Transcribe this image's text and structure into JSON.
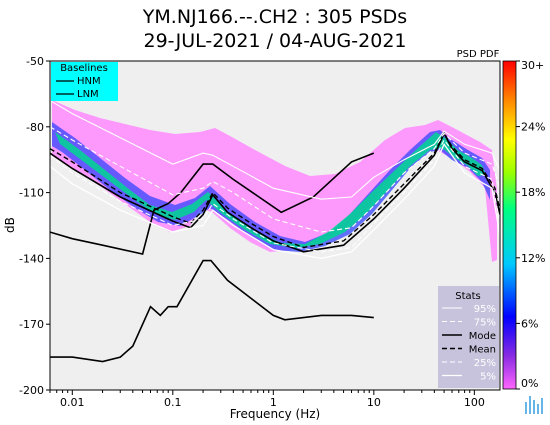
{
  "chart_data": {
    "type": "line",
    "title": "YM.NJ166.--.CH2 : 305 PSDs",
    "subtitle": "29-JUL-2021 / 04-AUG-2021",
    "xlabel": "Frequency (Hz)",
    "ylabel": "dB",
    "xscale": "log",
    "xlim": [
      0.006,
      180
    ],
    "ylim": [
      -200,
      -50
    ],
    "x_ticks": [
      {
        "value": 0.01,
        "label": "0.01"
      },
      {
        "value": 0.1,
        "label": "0.1"
      },
      {
        "value": 1,
        "label": "1"
      },
      {
        "value": 10,
        "label": "10"
      },
      {
        "value": 100,
        "label": "100"
      }
    ],
    "y_ticks": [
      -50,
      -80,
      -110,
      -140,
      -170,
      -200
    ],
    "series": [
      {
        "name": "HNM",
        "x": [
          0.006,
          0.01,
          0.02,
          0.05,
          0.065,
          0.09,
          0.12,
          0.2,
          0.25,
          0.4,
          1.2,
          2.5,
          6,
          10
        ],
        "y": [
          -128,
          -131,
          -134,
          -138,
          -118,
          -115,
          -110,
          -97,
          -97,
          -104,
          -119,
          -112,
          -96,
          -92
        ]
      },
      {
        "name": "LNM",
        "x": [
          0.006,
          0.01,
          0.02,
          0.03,
          0.04,
          0.06,
          0.075,
          0.09,
          0.11,
          0.2,
          0.24,
          0.35,
          1,
          1.3,
          3,
          6,
          10
        ],
        "y": [
          -185,
          -185,
          -187,
          -185,
          -180,
          -162,
          -166,
          -162,
          -162,
          -141,
          -141,
          -150,
          -166,
          -168,
          -166,
          -166,
          -167
        ]
      },
      {
        "name": "Mode",
        "x": [
          0.006,
          0.01,
          0.03,
          0.1,
          0.15,
          0.2,
          0.25,
          0.35,
          0.6,
          1,
          2,
          5,
          10,
          20,
          40,
          50,
          60,
          80,
          120,
          160,
          180
        ],
        "y": [
          -92,
          -99,
          -112,
          -123,
          -126,
          -120,
          -111,
          -119,
          -126,
          -132,
          -137,
          -134,
          -122,
          -108,
          -93,
          -83,
          -90,
          -96,
          -100,
          -110,
          -120
        ]
      },
      {
        "name": "Mean",
        "x": [
          0.006,
          0.01,
          0.03,
          0.1,
          0.15,
          0.2,
          0.25,
          0.35,
          0.6,
          1,
          2,
          5,
          10,
          20,
          40,
          50,
          60,
          80,
          120,
          160,
          180
        ],
        "y": [
          -90,
          -96,
          -110,
          -121,
          -124,
          -118,
          -110,
          -117,
          -124,
          -130,
          -135,
          -132,
          -120,
          -106,
          -92,
          -83,
          -89,
          -95,
          -99,
          -108,
          -118
        ]
      },
      {
        "name": "95%",
        "x": [
          0.006,
          0.01,
          0.03,
          0.1,
          0.2,
          0.25,
          0.4,
          1,
          3,
          6,
          10,
          20,
          40,
          50,
          80,
          150,
          180
        ],
        "y": [
          -68,
          -74,
          -85,
          -97,
          -92,
          -93,
          -98,
          -108,
          -113,
          -112,
          -103,
          -95,
          -88,
          -82,
          -88,
          -92,
          -100
        ]
      },
      {
        "name": "75%",
        "x": [
          0.006,
          0.01,
          0.03,
          0.1,
          0.2,
          0.25,
          0.4,
          1,
          3,
          6,
          10,
          20,
          40,
          50,
          80,
          150,
          180
        ],
        "y": [
          -80,
          -86,
          -98,
          -111,
          -108,
          -105,
          -110,
          -122,
          -128,
          -126,
          -116,
          -101,
          -90,
          -83,
          -92,
          -97,
          -108
        ]
      },
      {
        "name": "25%",
        "x": [
          0.006,
          0.01,
          0.03,
          0.1,
          0.2,
          0.25,
          0.4,
          1,
          3,
          6,
          10,
          20,
          40,
          50,
          80,
          150,
          180
        ],
        "y": [
          -93,
          -101,
          -114,
          -125,
          -122,
          -115,
          -122,
          -133,
          -137,
          -135,
          -124,
          -110,
          -95,
          -86,
          -98,
          -104,
          -125
        ]
      },
      {
        "name": "5%",
        "x": [
          0.006,
          0.01,
          0.03,
          0.1,
          0.2,
          0.25,
          0.4,
          1,
          3,
          6,
          10,
          20,
          40,
          50,
          80,
          150,
          180
        ],
        "y": [
          -98,
          -106,
          -118,
          -128,
          -125,
          -118,
          -125,
          -136,
          -140,
          -137,
          -127,
          -113,
          -98,
          -88,
          -101,
          -108,
          -130
        ]
      }
    ]
  },
  "legend_baselines": {
    "title": "Baselines",
    "items": [
      "HNM",
      "LNM"
    ]
  },
  "legend_stats": {
    "title": "Stats",
    "items": [
      "95%",
      "75%",
      "Mode",
      "Mean",
      "25%",
      "5%"
    ]
  },
  "colorbar": {
    "title": "PSD PDF",
    "ticks": [
      "30+",
      "24%",
      "18%",
      "12%",
      "6%",
      "0%"
    ]
  }
}
